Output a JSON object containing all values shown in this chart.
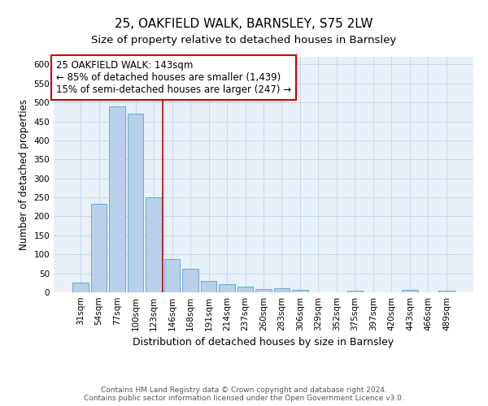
{
  "title1": "25, OAKFIELD WALK, BARNSLEY, S75 2LW",
  "title2": "Size of property relative to detached houses in Barnsley",
  "xlabel": "Distribution of detached houses by size in Barnsley",
  "ylabel": "Number of detached properties",
  "categories": [
    "31sqm",
    "54sqm",
    "77sqm",
    "100sqm",
    "123sqm",
    "146sqm",
    "168sqm",
    "191sqm",
    "214sqm",
    "237sqm",
    "260sqm",
    "283sqm",
    "306sqm",
    "329sqm",
    "352sqm",
    "375sqm",
    "397sqm",
    "420sqm",
    "443sqm",
    "466sqm",
    "489sqm"
  ],
  "values": [
    25,
    232,
    490,
    470,
    250,
    88,
    63,
    30,
    22,
    14,
    9,
    10,
    6,
    0,
    0,
    5,
    0,
    0,
    6,
    0,
    4
  ],
  "bar_color": "#b8d0ea",
  "bar_edge_color": "#6aaad4",
  "vline_x_index": 4.5,
  "vline_color": "#cc0000",
  "annotation_text": "25 OAKFIELD WALK: 143sqm\n← 85% of detached houses are smaller (1,439)\n15% of semi-detached houses are larger (247) →",
  "annotation_box_color": "#ffffff",
  "annotation_box_edge": "#cc0000",
  "ylim": [
    0,
    620
  ],
  "yticks": [
    0,
    50,
    100,
    150,
    200,
    250,
    300,
    350,
    400,
    450,
    500,
    550,
    600
  ],
  "grid_color": "#c8d8ec",
  "bg_color": "#e8f0f8",
  "footer": "Contains HM Land Registry data © Crown copyright and database right 2024.\nContains public sector information licensed under the Open Government Licence v3.0.",
  "title1_fontsize": 11,
  "title2_fontsize": 9.5,
  "xlabel_fontsize": 9,
  "ylabel_fontsize": 8.5,
  "tick_fontsize": 7.5,
  "annotation_fontsize": 8.5,
  "footer_fontsize": 6.5
}
